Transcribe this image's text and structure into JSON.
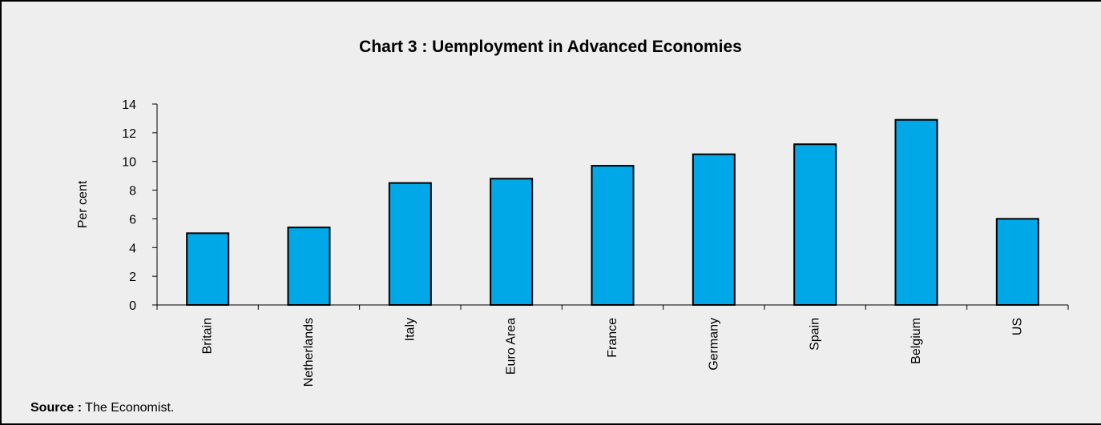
{
  "chart_data": {
    "type": "bar",
    "title": "Chart 3 : Uemployment in Advanced Economies",
    "ylabel": "Per cent",
    "xlabel": "",
    "categories": [
      "Britain",
      "Netherlands",
      "Italy",
      "Euro Area",
      "France",
      "Germany",
      "Spain",
      "Belgium",
      "US"
    ],
    "values": [
      5.0,
      5.4,
      8.5,
      8.8,
      9.7,
      10.5,
      11.2,
      12.9,
      6.0
    ],
    "ylim": [
      0,
      14
    ],
    "yticks": [
      "0",
      "2",
      "4",
      "6",
      "8",
      "10",
      "12",
      "14"
    ],
    "grid": false,
    "legend": "none",
    "bar_color": "#00a8e8"
  },
  "source": {
    "label": "Source :",
    "text": "The Economist."
  }
}
